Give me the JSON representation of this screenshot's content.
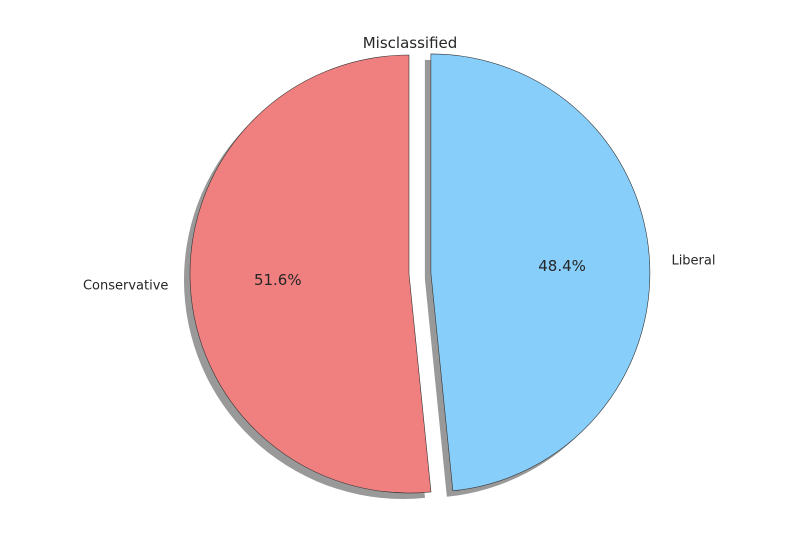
{
  "chart_data": {
    "type": "pie",
    "title": "Misclassified",
    "labels": [
      "Conservative",
      "Liberal"
    ],
    "values": [
      51.6,
      48.4
    ],
    "percent_labels": [
      "51.6%",
      "48.4%"
    ],
    "colors": [
      "#f08080",
      "#87cefa"
    ],
    "explode": [
      0,
      0.1
    ],
    "start_angle_deg": 90,
    "direction": "counterclockwise",
    "shadow": true,
    "legend": "none"
  }
}
